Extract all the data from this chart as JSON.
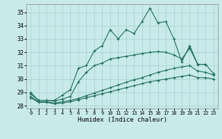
{
  "xlabel": "Humidex (Indice chaleur)",
  "bg_color": "#c8eaea",
  "grid_color": "#a8d4d4",
  "line_color": "#1a6b5a",
  "xlim": [
    -0.5,
    23.5
  ],
  "ylim": [
    27.8,
    35.6
  ],
  "xticks": [
    0,
    1,
    2,
    3,
    4,
    5,
    6,
    7,
    8,
    9,
    10,
    11,
    12,
    13,
    14,
    15,
    16,
    17,
    18,
    19,
    20,
    21,
    22,
    23
  ],
  "yticks": [
    28,
    29,
    30,
    31,
    32,
    33,
    34,
    35
  ],
  "line1_x": [
    0,
    1,
    2,
    3,
    4,
    5,
    6,
    7,
    8,
    9,
    10,
    11,
    12,
    13,
    14,
    15,
    16,
    17,
    18,
    19,
    20,
    21,
    22
  ],
  "line1_y": [
    29.0,
    28.4,
    28.4,
    28.4,
    28.8,
    29.2,
    30.8,
    31.0,
    32.1,
    32.5,
    33.7,
    33.0,
    33.7,
    33.4,
    34.3,
    35.3,
    34.2,
    34.3,
    33.0,
    31.3,
    32.5,
    31.1,
    31.1
  ],
  "line2_x": [
    0,
    1,
    2,
    3,
    4,
    5,
    6,
    7,
    8,
    9,
    10,
    11,
    12,
    13,
    14,
    15,
    16,
    17,
    18,
    19,
    20,
    21,
    22,
    23
  ],
  "line2_y": [
    28.9,
    28.4,
    28.4,
    28.35,
    28.5,
    28.7,
    29.8,
    30.5,
    31.0,
    31.2,
    31.5,
    31.6,
    31.7,
    31.8,
    31.9,
    32.0,
    32.05,
    32.0,
    31.8,
    31.5,
    32.3,
    31.1,
    31.1,
    30.4
  ],
  "line3_x": [
    0,
    1,
    2,
    3,
    4,
    5,
    6,
    7,
    8,
    9,
    10,
    11,
    12,
    13,
    14,
    15,
    16,
    17,
    18,
    19,
    20,
    21,
    22,
    23
  ],
  "line3_y": [
    28.7,
    28.3,
    28.3,
    28.2,
    28.3,
    28.4,
    28.55,
    28.75,
    28.95,
    29.15,
    29.35,
    29.55,
    29.75,
    29.95,
    30.1,
    30.3,
    30.5,
    30.65,
    30.8,
    30.9,
    31.0,
    30.6,
    30.5,
    30.3
  ],
  "line4_x": [
    0,
    1,
    2,
    3,
    4,
    5,
    6,
    7,
    8,
    9,
    10,
    11,
    12,
    13,
    14,
    15,
    16,
    17,
    18,
    19,
    20,
    21,
    22,
    23
  ],
  "line4_y": [
    28.6,
    28.25,
    28.25,
    28.15,
    28.2,
    28.3,
    28.45,
    28.6,
    28.75,
    28.9,
    29.05,
    29.2,
    29.35,
    29.5,
    29.65,
    29.8,
    29.9,
    30.0,
    30.1,
    30.2,
    30.3,
    30.1,
    30.1,
    30.0
  ]
}
